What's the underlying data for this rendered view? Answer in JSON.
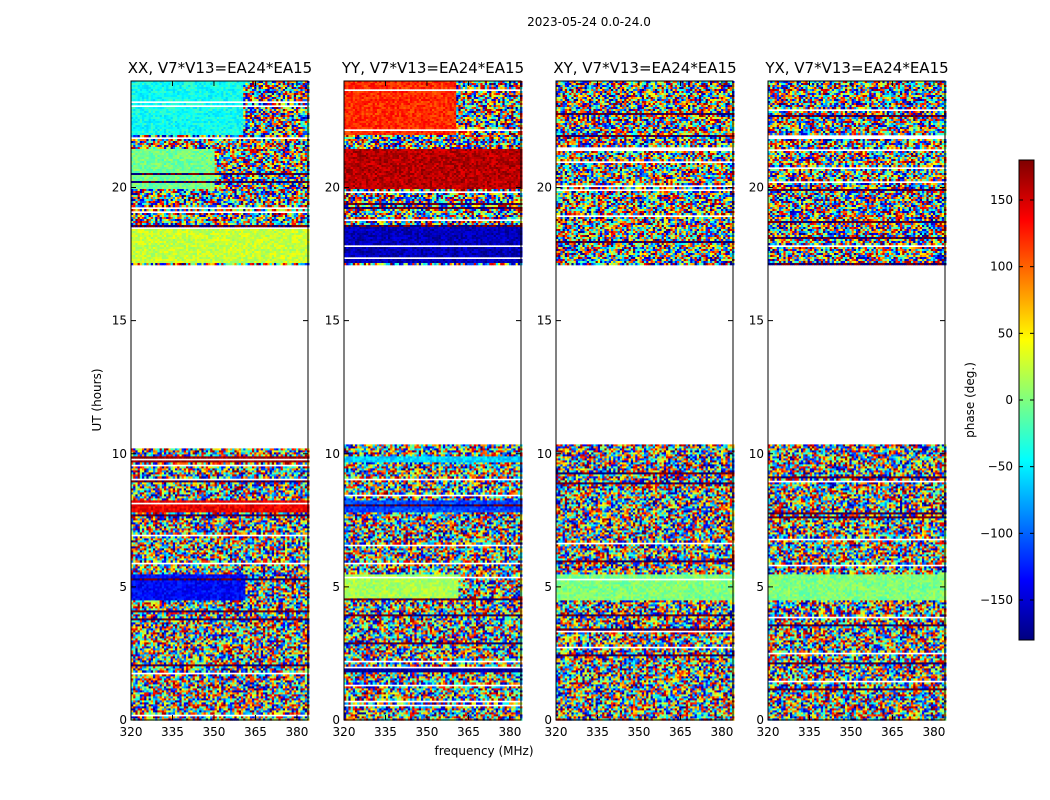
{
  "figure": {
    "suptitle": "2023-05-24 0.0-24.0"
  },
  "chart_data": {
    "type": "heatmap",
    "value_range": [
      -180,
      180
    ],
    "xlim": [
      320,
      384
    ],
    "ylim": [
      0,
      24
    ],
    "x_ticks": [
      320,
      335,
      350,
      365,
      380
    ],
    "y_ticks": [
      0,
      5,
      10,
      15,
      20
    ],
    "xlabel": "frequency (MHz)",
    "ylabel": "UT (hours)",
    "colorbar": {
      "label": "phase (deg.)",
      "ticks": [
        150,
        100,
        50,
        0,
        -50,
        -100,
        -150
      ],
      "tick_labels": [
        "150",
        "100",
        "50",
        "0",
        "−50",
        "−100",
        "−150"
      ],
      "colormap": [
        "#00007f",
        "#0000ff",
        "#007fff",
        "#00ffff",
        "#7fff7f",
        "#ffff00",
        "#ff7f00",
        "#ff0000",
        "#7f0000"
      ]
    },
    "data_blocks_hours": [
      [
        0.0,
        10.35
      ],
      [
        17.1,
        24.0
      ]
    ],
    "panels": [
      {
        "title": "XX, V7*V13=EA24*EA15",
        "coherent_features": [
          {
            "t0": 4.5,
            "t1": 5.5,
            "f0": 320,
            "f1": 361,
            "phase": -135
          },
          {
            "t0": 7.8,
            "t1": 8.3,
            "f0": 320,
            "f1": 384,
            "phase": 140
          },
          {
            "t0": 9.7,
            "t1": 9.9,
            "f0": 320,
            "f1": 384,
            "phase": 175
          },
          {
            "t0": 17.2,
            "t1": 18.6,
            "f0": 320,
            "f1": 384,
            "phase": 25
          },
          {
            "t0": 20.0,
            "t1": 21.5,
            "f0": 320,
            "f1": 350,
            "phase": -5
          },
          {
            "t0": 22.0,
            "t1": 24.0,
            "f0": 320,
            "f1": 360,
            "phase": -40
          }
        ]
      },
      {
        "title": "YY, V7*V13=EA24*EA15",
        "coherent_features": [
          {
            "t0": 4.5,
            "t1": 5.5,
            "f0": 320,
            "f1": 361,
            "phase": 15
          },
          {
            "t0": 7.8,
            "t1": 8.3,
            "f0": 320,
            "f1": 384,
            "phase": -110
          },
          {
            "t0": 9.7,
            "t1": 9.9,
            "f0": 320,
            "f1": 384,
            "phase": -60
          },
          {
            "t0": 1.8,
            "t1": 2.0,
            "f0": 320,
            "f1": 384,
            "phase": -170
          },
          {
            "t0": 17.2,
            "t1": 18.6,
            "f0": 320,
            "f1": 384,
            "phase": -160
          },
          {
            "t0": 20.0,
            "t1": 21.5,
            "f0": 320,
            "f1": 384,
            "phase": 160
          },
          {
            "t0": 22.0,
            "t1": 24.0,
            "f0": 320,
            "f1": 360,
            "phase": 120
          }
        ]
      },
      {
        "title": "XY, V7*V13=EA24*EA15",
        "coherent_features": [
          {
            "t0": 4.5,
            "t1": 5.5,
            "f0": 320,
            "f1": 384,
            "phase": 0
          }
        ]
      },
      {
        "title": "YX, V7*V13=EA24*EA15",
        "coherent_features": [
          {
            "t0": 4.5,
            "t1": 5.5,
            "f0": 320,
            "f1": 384,
            "phase": 0
          }
        ]
      }
    ]
  }
}
